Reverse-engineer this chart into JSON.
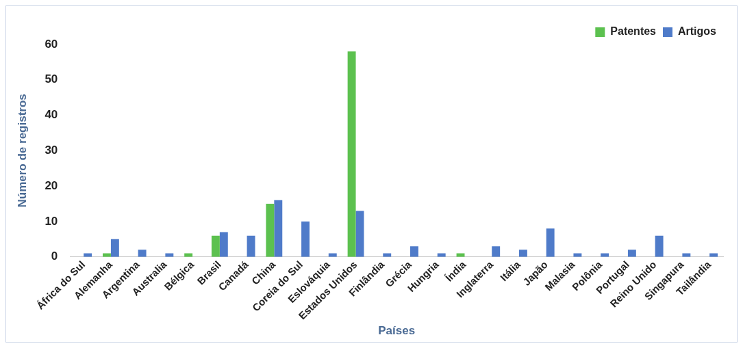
{
  "chart_data": {
    "type": "bar",
    "xlabel": "Países",
    "ylabel": "Número de registros",
    "categories": [
      "África do Sul",
      "Alemanha",
      "Argentina",
      "Australia",
      "Bélgica",
      "Brasil",
      "Canadá",
      "China",
      "Coreia do Sul",
      "Eslováquia",
      "Estados Unidos",
      "Finlândia",
      "Grécia",
      "Hungria",
      "Índia",
      "Inglaterra",
      "Itália",
      "Japão",
      "Malasia",
      "Polônia",
      "Portugal",
      "Reino Unido",
      "Singapura",
      "Tailândia"
    ],
    "series": [
      {
        "name": "Patentes",
        "color": "#5cc14f",
        "values": [
          0,
          1,
          0,
          0,
          1,
          6,
          0,
          15,
          0,
          0,
          58,
          0,
          0,
          0,
          1,
          0,
          0,
          0,
          0,
          0,
          0,
          0,
          0,
          0
        ]
      },
      {
        "name": "Artigos",
        "color": "#4f7bc9",
        "values": [
          1,
          5,
          2,
          1,
          0,
          7,
          6,
          16,
          10,
          1,
          13,
          1,
          3,
          1,
          0,
          3,
          2,
          8,
          1,
          1,
          2,
          6,
          1,
          1
        ]
      }
    ],
    "ylim": [
      0,
      60
    ],
    "yticks": [
      0,
      10,
      20,
      30,
      40,
      50,
      60
    ],
    "grid": false,
    "legend": "top right"
  }
}
